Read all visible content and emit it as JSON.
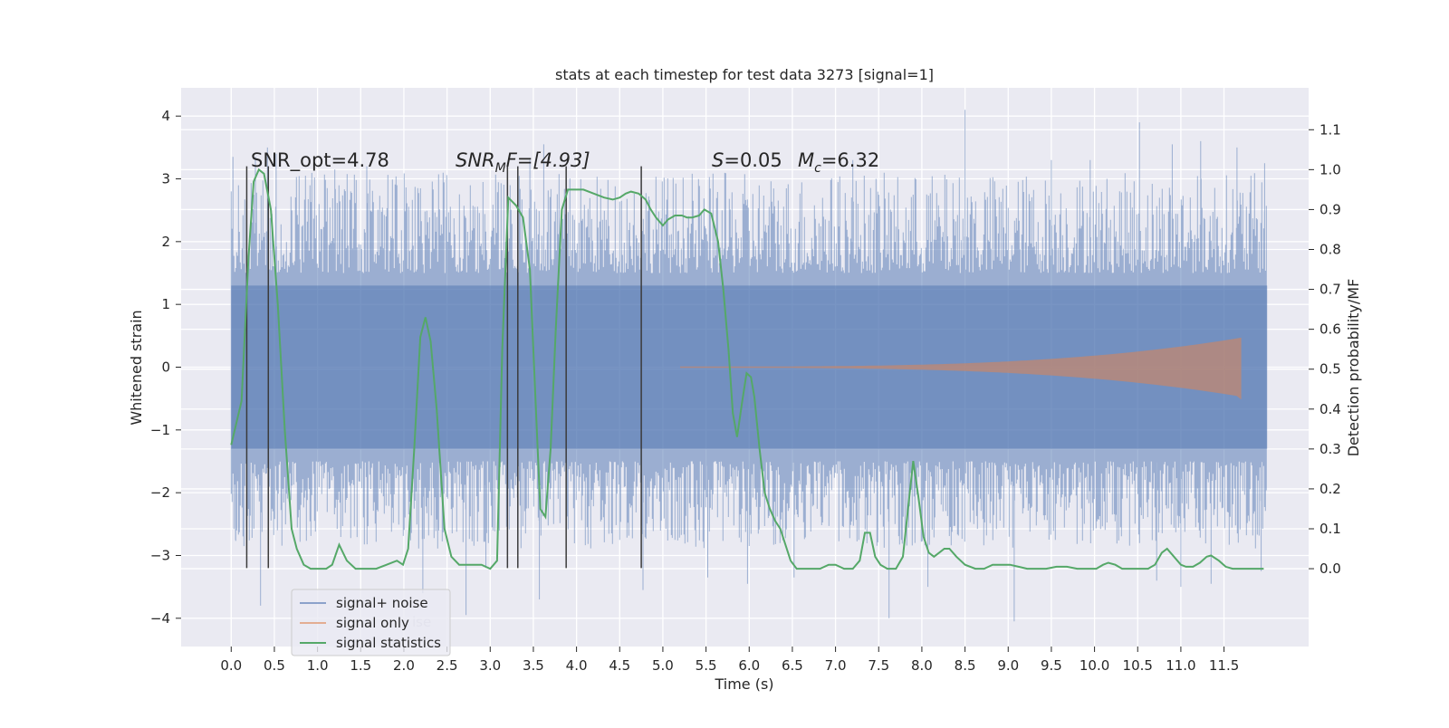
{
  "chart_data": {
    "type": "line",
    "title": "stats at each timestep for test data 3273 [signal=1]",
    "xlabel": "Time (s)",
    "ylabel": "Whitened strain",
    "ylabel_right": "Detection probability/MF",
    "xlim": [
      -0.58,
      12.48
    ],
    "ylim": [
      -4.45,
      4.45
    ],
    "ylim_right": [
      -0.195,
      1.205
    ],
    "x_ticks": [
      "0.0",
      "0.5",
      "1.0",
      "1.5",
      "2.0",
      "2.5",
      "3.0",
      "3.5",
      "4.0",
      "4.5",
      "5.0",
      "5.5",
      "6.0",
      "6.5",
      "7.0",
      "7.5",
      "8.0",
      "8.5",
      "9.0",
      "9.5",
      "10.0",
      "10.5",
      "11.0",
      "11.5"
    ],
    "y_ticks": [
      "4",
      "3",
      "2",
      "1",
      "0",
      "−1",
      "−2",
      "−3",
      "−4"
    ],
    "y_ticks_right": [
      "1.1",
      "1.0",
      "0.9",
      "0.8",
      "0.7",
      "0.6",
      "0.5",
      "0.4",
      "0.3",
      "0.2",
      "0.1",
      "0.0"
    ],
    "grid": true,
    "legend_position": "lower-left",
    "legend": [
      {
        "label": "signal+ noise",
        "color": "#4c72b0"
      },
      {
        "label": "signal only",
        "color": "#dd8452"
      },
      {
        "label": "signal statistics",
        "color": "#55a868"
      }
    ],
    "legend_ghost_text": "ise",
    "annotations": {
      "snr_opt": "SNR_opt=4.78",
      "snr_mf_main": "SNR",
      "snr_mf_sub": "M",
      "snr_mf_rest": "F=[4.93]",
      "s_symbol": "S",
      "s_value": "=0.05",
      "mc_symbol": "M",
      "mc_sub": "c",
      "mc_value": "=6.32"
    },
    "series": [
      {
        "name": "signal+ noise",
        "axis": "left",
        "color": "#4c72b0",
        "x_range": [
          0.0,
          12.0
        ],
        "envelope_y": [
          -1.3,
          1.3
        ],
        "spike_extremes": [
          {
            "x": 0.02,
            "y": 3.35
          },
          {
            "x": 0.05,
            "y": -2.75
          },
          {
            "x": 0.28,
            "y": 3.35
          },
          {
            "x": 0.42,
            "y": 3.5
          },
          {
            "x": 0.52,
            "y": 3.4
          },
          {
            "x": 0.34,
            "y": -3.8
          },
          {
            "x": 1.2,
            "y": 3.15
          },
          {
            "x": 1.57,
            "y": 3.2
          },
          {
            "x": 1.92,
            "y": 2.9
          },
          {
            "x": 2.22,
            "y": -3.6
          },
          {
            "x": 2.72,
            "y": -3.95
          },
          {
            "x": 2.95,
            "y": -3.2
          },
          {
            "x": 3.46,
            "y": 3.3
          },
          {
            "x": 3.62,
            "y": 3.55
          },
          {
            "x": 3.57,
            "y": -3.7
          },
          {
            "x": 4.77,
            "y": -3.55
          },
          {
            "x": 5.52,
            "y": -3.35
          },
          {
            "x": 5.98,
            "y": -3.45
          },
          {
            "x": 6.52,
            "y": -3.35
          },
          {
            "x": 7.2,
            "y": 3.3
          },
          {
            "x": 7.62,
            "y": -4.0
          },
          {
            "x": 8.5,
            "y": 4.1
          },
          {
            "x": 8.07,
            "y": -3.5
          },
          {
            "x": 9.07,
            "y": -4.05
          },
          {
            "x": 9.5,
            "y": 3.3
          },
          {
            "x": 9.95,
            "y": 3.3
          },
          {
            "x": 10.52,
            "y": 3.9
          },
          {
            "x": 10.72,
            "y": -3.4
          },
          {
            "x": 10.9,
            "y": 3.55
          },
          {
            "x": 11.0,
            "y": -3.5
          },
          {
            "x": 11.23,
            "y": 3.6
          },
          {
            "x": 11.35,
            "y": -3.45
          },
          {
            "x": 11.65,
            "y": 3.5
          },
          {
            "x": 11.93,
            "y": -3.25
          },
          {
            "x": 11.97,
            "y": 3.25
          }
        ]
      },
      {
        "name": "signal only",
        "axis": "left",
        "color": "#dd8452",
        "x_start": 5.2,
        "x_end": 11.7,
        "peak_amplitude": 0.47
      },
      {
        "name": "signal statistics",
        "axis": "right",
        "color": "#55a868",
        "points": [
          [
            0.0,
            0.31
          ],
          [
            0.12,
            0.42
          ],
          [
            0.2,
            0.78
          ],
          [
            0.26,
            0.97
          ],
          [
            0.32,
            1.0
          ],
          [
            0.38,
            0.99
          ],
          [
            0.46,
            0.9
          ],
          [
            0.54,
            0.66
          ],
          [
            0.62,
            0.35
          ],
          [
            0.7,
            0.1
          ],
          [
            0.76,
            0.05
          ],
          [
            0.84,
            0.01
          ],
          [
            0.92,
            0.0
          ],
          [
            1.0,
            0.0
          ],
          [
            1.1,
            0.0
          ],
          [
            1.17,
            0.01
          ],
          [
            1.25,
            0.06
          ],
          [
            1.34,
            0.02
          ],
          [
            1.44,
            0.0
          ],
          [
            1.56,
            0.0
          ],
          [
            1.68,
            0.0
          ],
          [
            1.8,
            0.01
          ],
          [
            1.92,
            0.02
          ],
          [
            1.99,
            0.01
          ],
          [
            2.05,
            0.05
          ],
          [
            2.12,
            0.3
          ],
          [
            2.19,
            0.58
          ],
          [
            2.25,
            0.63
          ],
          [
            2.31,
            0.57
          ],
          [
            2.38,
            0.4
          ],
          [
            2.47,
            0.1
          ],
          [
            2.55,
            0.03
          ],
          [
            2.64,
            0.01
          ],
          [
            2.75,
            0.01
          ],
          [
            2.9,
            0.01
          ],
          [
            3.0,
            0.0
          ],
          [
            3.08,
            0.02
          ],
          [
            3.14,
            0.55
          ],
          [
            3.21,
            0.93
          ],
          [
            3.3,
            0.91
          ],
          [
            3.38,
            0.88
          ],
          [
            3.46,
            0.75
          ],
          [
            3.52,
            0.45
          ],
          [
            3.58,
            0.15
          ],
          [
            3.64,
            0.13
          ],
          [
            3.7,
            0.3
          ],
          [
            3.76,
            0.6
          ],
          [
            3.83,
            0.9
          ],
          [
            3.9,
            0.95
          ],
          [
            3.98,
            0.95
          ],
          [
            4.08,
            0.95
          ],
          [
            4.2,
            0.94
          ],
          [
            4.32,
            0.93
          ],
          [
            4.42,
            0.925
          ],
          [
            4.5,
            0.93
          ],
          [
            4.57,
            0.94
          ],
          [
            4.63,
            0.945
          ],
          [
            4.72,
            0.94
          ],
          [
            4.8,
            0.925
          ],
          [
            4.86,
            0.9
          ],
          [
            4.92,
            0.88
          ],
          [
            5.0,
            0.86
          ],
          [
            5.06,
            0.875
          ],
          [
            5.14,
            0.885
          ],
          [
            5.22,
            0.885
          ],
          [
            5.28,
            0.88
          ],
          [
            5.34,
            0.88
          ],
          [
            5.42,
            0.885
          ],
          [
            5.48,
            0.9
          ],
          [
            5.56,
            0.89
          ],
          [
            5.64,
            0.82
          ],
          [
            5.7,
            0.7
          ],
          [
            5.76,
            0.55
          ],
          [
            5.81,
            0.39
          ],
          [
            5.86,
            0.33
          ],
          [
            5.92,
            0.42
          ],
          [
            5.97,
            0.49
          ],
          [
            6.02,
            0.48
          ],
          [
            6.06,
            0.43
          ],
          [
            6.12,
            0.3
          ],
          [
            6.18,
            0.19
          ],
          [
            6.24,
            0.15
          ],
          [
            6.3,
            0.12
          ],
          [
            6.36,
            0.1
          ],
          [
            6.42,
            0.06
          ],
          [
            6.48,
            0.02
          ],
          [
            6.55,
            0.0
          ],
          [
            6.7,
            0.0
          ],
          [
            6.82,
            0.0
          ],
          [
            6.92,
            0.01
          ],
          [
            7.0,
            0.01
          ],
          [
            7.1,
            0.0
          ],
          [
            7.2,
            0.0
          ],
          [
            7.28,
            0.02
          ],
          [
            7.34,
            0.09
          ],
          [
            7.4,
            0.09
          ],
          [
            7.46,
            0.03
          ],
          [
            7.52,
            0.01
          ],
          [
            7.6,
            0.0
          ],
          [
            7.7,
            0.0
          ],
          [
            7.78,
            0.03
          ],
          [
            7.85,
            0.17
          ],
          [
            7.9,
            0.27
          ],
          [
            7.96,
            0.18
          ],
          [
            8.02,
            0.08
          ],
          [
            8.08,
            0.04
          ],
          [
            8.14,
            0.03
          ],
          [
            8.2,
            0.04
          ],
          [
            8.26,
            0.05
          ],
          [
            8.32,
            0.05
          ],
          [
            8.4,
            0.03
          ],
          [
            8.5,
            0.01
          ],
          [
            8.62,
            0.0
          ],
          [
            8.72,
            0.0
          ],
          [
            8.82,
            0.01
          ],
          [
            8.94,
            0.01
          ],
          [
            9.02,
            0.01
          ],
          [
            9.12,
            0.005
          ],
          [
            9.22,
            0.0
          ],
          [
            9.32,
            0.0
          ],
          [
            9.44,
            0.0
          ],
          [
            9.56,
            0.005
          ],
          [
            9.68,
            0.005
          ],
          [
            9.8,
            0.0
          ],
          [
            9.9,
            0.0
          ],
          [
            10.02,
            0.0
          ],
          [
            10.1,
            0.01
          ],
          [
            10.16,
            0.015
          ],
          [
            10.24,
            0.01
          ],
          [
            10.32,
            0.0
          ],
          [
            10.42,
            0.0
          ],
          [
            10.52,
            0.0
          ],
          [
            10.62,
            0.0
          ],
          [
            10.7,
            0.01
          ],
          [
            10.78,
            0.04
          ],
          [
            10.84,
            0.05
          ],
          [
            10.92,
            0.03
          ],
          [
            11.0,
            0.01
          ],
          [
            11.06,
            0.005
          ],
          [
            11.14,
            0.005
          ],
          [
            11.22,
            0.015
          ],
          [
            11.3,
            0.03
          ],
          [
            11.35,
            0.033
          ],
          [
            11.44,
            0.02
          ],
          [
            11.52,
            0.005
          ],
          [
            11.6,
            0.0
          ],
          [
            11.72,
            0.0
          ],
          [
            11.84,
            0.0
          ],
          [
            11.96,
            0.0
          ]
        ]
      }
    ],
    "event_markers": {
      "color": "#3b3b3b",
      "axis": "left",
      "y_from": -3.2,
      "y_to": 3.2,
      "x": [
        0.18,
        0.43,
        3.2,
        3.32,
        3.88,
        4.75
      ]
    }
  }
}
